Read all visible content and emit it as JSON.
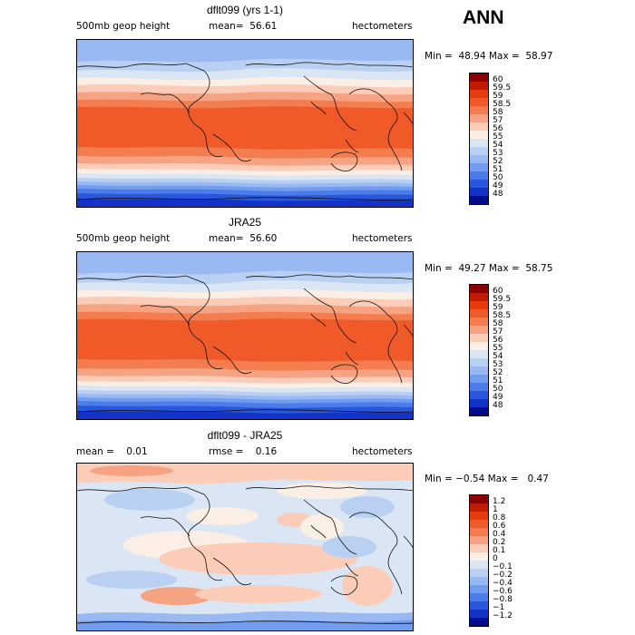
{
  "season": "ANN",
  "panels": [
    {
      "title": "dflt099 (yrs 1-1)",
      "field": "500mb geop height",
      "stat": "mean=  56.61",
      "units": "hectometers",
      "minmax": "Min =  48.94 Max =  58.97",
      "colorbar": {
        "labels": [
          "60",
          "59.5",
          "59",
          "58.5",
          "58",
          "57",
          "56",
          "55",
          "54",
          "53",
          "52",
          "51",
          "50",
          "49",
          "48"
        ],
        "colors": [
          "#8b0000",
          "#c11a00",
          "#e63b0c",
          "#f05a28",
          "#f37d4e",
          "#f6a383",
          "#fbccb8",
          "#fbeee4",
          "#dbe6f4",
          "#b9d0f2",
          "#98b9f2",
          "#729cef",
          "#4b7ce9",
          "#2a56dd",
          "#1232c8",
          "#000c8a"
        ]
      }
    },
    {
      "title": "JRA25",
      "field": "500mb geop height",
      "stat": "mean=  56.60",
      "units": "hectometers",
      "minmax": "Min =  49.27 Max =  58.75",
      "colorbar": {
        "labels": [
          "60",
          "59.5",
          "59",
          "58.5",
          "58",
          "57",
          "56",
          "55",
          "54",
          "53",
          "52",
          "51",
          "50",
          "49",
          "48"
        ],
        "colors": [
          "#8b0000",
          "#c11a00",
          "#e63b0c",
          "#f05a28",
          "#f37d4e",
          "#f6a383",
          "#fbccb8",
          "#fbeee4",
          "#dbe6f4",
          "#b9d0f2",
          "#98b9f2",
          "#729cef",
          "#4b7ce9",
          "#2a56dd",
          "#1232c8",
          "#000c8a"
        ]
      }
    },
    {
      "title": "dflt099 - JRA25",
      "field": "mean =    0.01",
      "stat": "rmse =    0.16",
      "units": "hectometers",
      "minmax": "Min = −0.54 Max =   0.47",
      "colorbar": {
        "labels": [
          "1.2",
          "1",
          "0.8",
          "0.6",
          "0.4",
          "0.2",
          "0.1",
          "0",
          "−0.1",
          "−0.2",
          "−0.4",
          "−0.6",
          "−0.8",
          "−1",
          "−1.2"
        ],
        "colors": [
          "#8b0000",
          "#c11a00",
          "#e63b0c",
          "#f05a28",
          "#f37d4e",
          "#f6a383",
          "#fbccb8",
          "#fbeee4",
          "#dbe6f4",
          "#b9d0f2",
          "#98b9f2",
          "#729cef",
          "#4b7ce9",
          "#2a56dd",
          "#1232c8",
          "#000c8a"
        ]
      }
    }
  ]
}
